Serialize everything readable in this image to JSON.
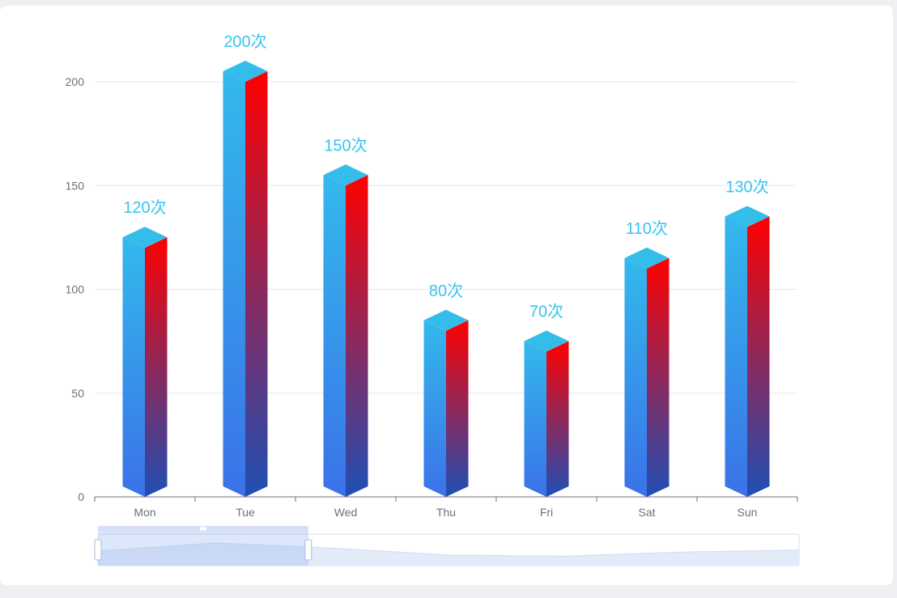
{
  "chart_data": {
    "type": "bar",
    "title": "",
    "xlabel": "",
    "ylabel": "",
    "categories": [
      "Mon",
      "Tue",
      "Wed",
      "Thu",
      "Fri",
      "Sat",
      "Sun"
    ],
    "values": [
      120,
      200,
      150,
      80,
      70,
      110,
      130
    ],
    "value_suffix": "次",
    "ylim": [
      0,
      200
    ],
    "yticks": [
      0,
      50,
      100,
      150,
      200
    ],
    "grid": true,
    "style": "3d-cylinder-bar",
    "colors": {
      "front_top": "#33b9ec",
      "front_bottom": "#3a72e8",
      "side_top": "#ff0000",
      "side_bottom": "#1e4fb4",
      "cap": "#35bde9",
      "label": "#39c3ef",
      "axis": "#6e7079",
      "grid": "#e6e8f0"
    },
    "data_zoom": {
      "start_percent": 0,
      "end_percent": 30
    }
  }
}
